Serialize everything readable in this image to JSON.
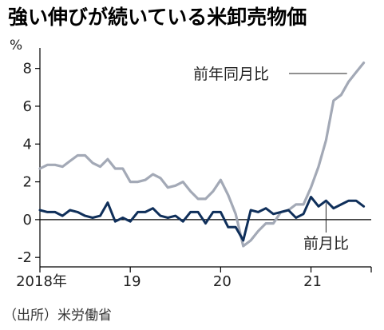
{
  "chart_data": {
    "type": "line",
    "title": "強い伸びが続いている米卸売物価",
    "unit": "%",
    "source": "（出所）米労働省",
    "ylim": [
      -2.5,
      9
    ],
    "yticks": [
      8,
      6,
      4,
      2,
      0,
      -2
    ],
    "ytick_labels": [
      "8",
      "6",
      "4",
      "2",
      "0",
      "-2"
    ],
    "xlim": [
      0,
      44
    ],
    "xticks": [
      {
        "x": 0,
        "label": "2018年"
      },
      {
        "x": 12,
        "label": "19"
      },
      {
        "x": 24,
        "label": "20"
      },
      {
        "x": 36,
        "label": "21"
      },
      {
        "x": 44,
        "label": ""
      }
    ],
    "x_period": "2018-01 to 2021-08 (monthly)",
    "series": [
      {
        "name": "前年同月比",
        "color": "#a3a9b6",
        "values": [
          2.7,
          2.9,
          2.9,
          2.8,
          3.1,
          3.4,
          3.4,
          3.0,
          2.8,
          3.2,
          2.7,
          2.7,
          2.0,
          2.0,
          2.1,
          2.4,
          2.2,
          1.7,
          1.8,
          2.0,
          1.5,
          1.1,
          1.1,
          1.5,
          2.1,
          1.3,
          0.3,
          -1.4,
          -1.1,
          -0.6,
          -0.2,
          -0.2,
          0.4,
          0.5,
          0.8,
          0.8,
          1.7,
          2.8,
          4.2,
          6.3,
          6.6,
          7.3,
          7.8,
          8.3
        ]
      },
      {
        "name": "前月比",
        "color": "#0f2f5a",
        "values": [
          0.5,
          0.4,
          0.4,
          0.2,
          0.5,
          0.4,
          0.2,
          0.1,
          0.2,
          0.9,
          -0.1,
          0.1,
          -0.1,
          0.4,
          0.4,
          0.6,
          0.2,
          0.1,
          0.2,
          -0.1,
          0.4,
          0.4,
          -0.2,
          0.4,
          0.4,
          -0.4,
          -0.4,
          -1.1,
          0.5,
          0.4,
          0.6,
          0.3,
          0.4,
          0.5,
          0.1,
          0.3,
          1.2,
          0.7,
          1.0,
          0.6,
          0.8,
          1.0,
          1.0,
          0.7
        ]
      }
    ],
    "annotations": [
      {
        "series": "前年同月比",
        "text": "前年同月比"
      },
      {
        "series": "前月比",
        "text": "前月比"
      }
    ],
    "grid": false
  }
}
